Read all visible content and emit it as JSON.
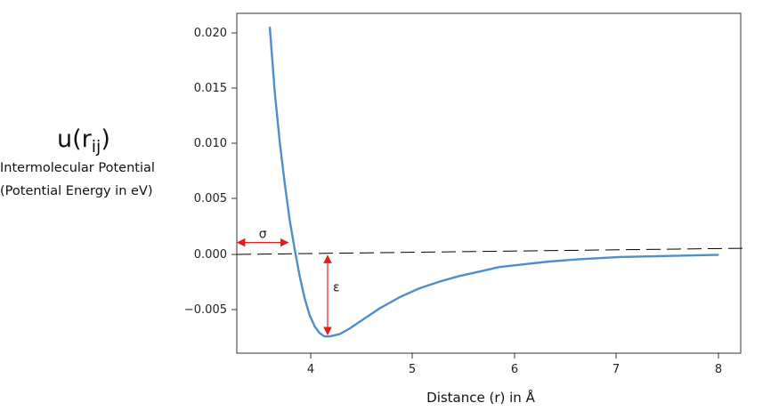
{
  "chart_data": {
    "type": "line",
    "x_label": "Distance (r) in Å",
    "y_label": {
      "symbol_main": "u(r",
      "symbol_sub": "ij",
      "symbol_close": ")",
      "line1": "Intermolecular Potential",
      "line2": "(Potential Energy in eV)"
    },
    "xlim": [
      3.17,
      8.22
    ],
    "ylim": [
      -0.0089,
      0.0215
    ],
    "x_ticks": [
      "4",
      "5",
      "6",
      "7",
      "8"
    ],
    "y_ticks": [
      "0.020",
      "0.015",
      "0.010",
      "0.005",
      "0.000",
      "−0.005"
    ],
    "series": [
      {
        "color": "#4d8ecb",
        "x": [
          3.5,
          3.55,
          3.6,
          3.65,
          3.7,
          3.75,
          3.8,
          3.85,
          3.9,
          3.95,
          4.0,
          4.05,
          4.1,
          4.15,
          4.2,
          4.3,
          4.4,
          4.5,
          4.6,
          4.7,
          4.8,
          4.9,
          5.0,
          5.2,
          5.4,
          5.6,
          5.8,
          6.0,
          6.3,
          6.6,
          7.0,
          7.5,
          8.0
        ],
        "y": [
          0.0203,
          0.0145,
          0.01,
          0.0063,
          0.003,
          0.0004,
          -0.002,
          -0.004,
          -0.0055,
          -0.0065,
          -0.0071,
          -0.0074,
          -0.0074,
          -0.0073,
          -0.0072,
          -0.0067,
          -0.0061,
          -0.0055,
          -0.0049,
          -0.0044,
          -0.0039,
          -0.0035,
          -0.0031,
          -0.0025,
          -0.002,
          -0.0016,
          -0.0012,
          -0.001,
          -0.0007,
          -0.0005,
          -0.0003,
          -0.0002,
          -0.0001
        ]
      }
    ],
    "annotations": {
      "sigma_label": "σ",
      "epsilon_label": "ε",
      "sigma_x": [
        3.17,
        3.69
      ],
      "sigma_y": 0.001,
      "epsilon_x": 4.08,
      "epsilon_y": [
        -0.0001,
        -0.0073
      ],
      "arrow_color": "#e02020",
      "dashed_line_color": "#000000"
    }
  }
}
